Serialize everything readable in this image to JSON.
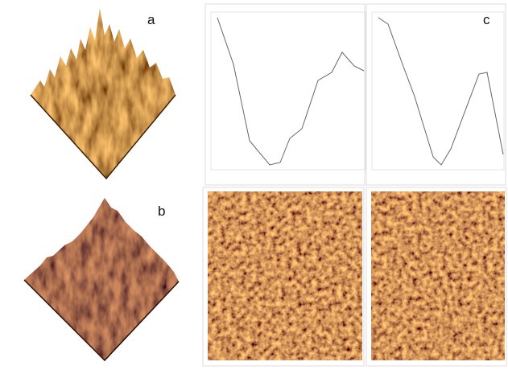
{
  "panels": {
    "a": {
      "label": "a"
    },
    "b": {
      "label": "b"
    },
    "c": {
      "label": "c"
    }
  }
}
